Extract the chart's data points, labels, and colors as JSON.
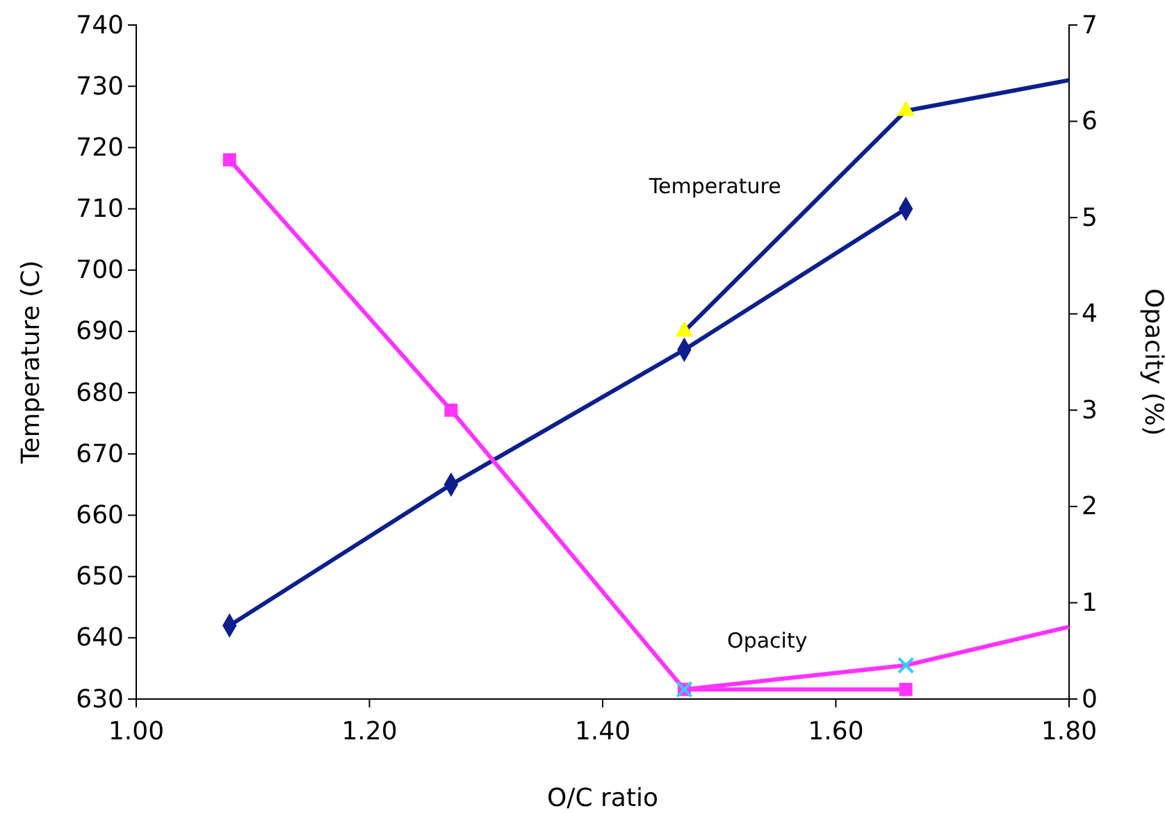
{
  "chart_data": {
    "type": "line",
    "xlabel": "O/C ratio",
    "ylabel": "Temperature (C)",
    "y2label": "Opacity (%)",
    "xlim": [
      1.0,
      1.8
    ],
    "xticks": [
      {
        "value": 1.0,
        "label": "1.00"
      },
      {
        "value": 1.2,
        "label": "1.20"
      },
      {
        "value": 1.4,
        "label": "1.40"
      },
      {
        "value": 1.6,
        "label": "1.60"
      },
      {
        "value": 1.8,
        "label": "1.80"
      }
    ],
    "ylim": [
      630,
      740
    ],
    "yticks": [
      630,
      640,
      650,
      660,
      670,
      680,
      690,
      700,
      710,
      720,
      730,
      740
    ],
    "y2lim": [
      0,
      7
    ],
    "y2ticks": [
      0,
      1,
      2,
      3,
      4,
      5,
      6,
      7
    ],
    "grid": false,
    "legend": false,
    "series": [
      {
        "color": "#0d1f8c",
        "marker": "diamond",
        "x": [
          1.08,
          1.27,
          1.47,
          1.66
        ],
        "values": [
          642,
          665,
          687,
          710
        ]
      },
      {
        "name": "Temperature",
        "color": "#0d1f8c",
        "marker": "none",
        "x": [
          1.47,
          1.66,
          1.8
        ],
        "values": [
          690,
          726,
          731
        ]
      },
      {
        "color": "#ffff00",
        "type": "scatter",
        "marker": "triangle",
        "x": [
          1.47,
          1.66
        ],
        "values": [
          690,
          726
        ]
      },
      {
        "name": "Opacity",
        "color": "#ff33ff",
        "marker": "square",
        "axis": "y2",
        "x": [
          1.08,
          1.27,
          1.47,
          1.66
        ],
        "values": [
          5.6,
          3.0,
          0.1,
          0.1
        ]
      },
      {
        "color": "#ff33ff",
        "marker": "none",
        "axis": "y2",
        "x": [
          1.47,
          1.66,
          1.8
        ],
        "values": [
          0.1,
          0.35,
          0.75
        ]
      },
      {
        "color": "#33ccff",
        "type": "scatter",
        "marker": "cross",
        "axis": "y2",
        "x": [
          1.47,
          1.66
        ],
        "values": [
          0.1,
          0.35
        ]
      }
    ]
  }
}
